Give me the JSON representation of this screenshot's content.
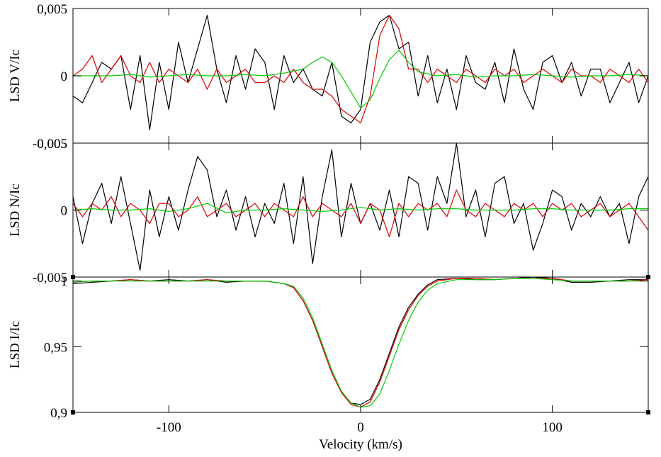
{
  "chart_data": {
    "type": "line",
    "xlabel": "Velocity (km/s)",
    "xlim": [
      -150,
      150
    ],
    "x_ticks": [
      -100,
      0,
      100
    ],
    "x_tick_labels": [
      "-100",
      "0",
      "100"
    ],
    "series_colors": {
      "black": "#000000",
      "red": "#e00000",
      "green": "#00cc00"
    },
    "panels": [
      {
        "id": "stokes-v",
        "ylabel": "LSD V/Ic",
        "ylim": [
          -0.005,
          0.005
        ],
        "y_ticks": [
          -0.005,
          0,
          0.005
        ],
        "y_tick_labels": [
          "-0,005",
          "0",
          "0,005"
        ],
        "series": [
          {
            "name": "black",
            "color": "#000000",
            "x": [
              -150,
              -145,
              -140,
              -135,
              -130,
              -125,
              -120,
              -115,
              -110,
              -105,
              -100,
              -95,
              -90,
              -85,
              -80,
              -75,
              -70,
              -65,
              -60,
              -55,
              -50,
              -45,
              -40,
              -35,
              -30,
              -25,
              -20,
              -15,
              -10,
              -5,
              0,
              5,
              10,
              15,
              20,
              25,
              30,
              35,
              40,
              45,
              50,
              55,
              60,
              65,
              70,
              75,
              80,
              85,
              90,
              95,
              100,
              105,
              110,
              115,
              120,
              125,
              130,
              135,
              140,
              145,
              150
            ],
            "y": [
              -0.0015,
              -0.002,
              -0.0005,
              0.001,
              0.0005,
              0.0015,
              -0.0025,
              0.0015,
              -0.004,
              0.001,
              -0.0025,
              0.0025,
              -0.0005,
              0.002,
              0.0045,
              0.0005,
              -0.002,
              0.0015,
              -0.001,
              0.002,
              0.001,
              -0.0025,
              0.0015,
              -0.0005,
              0.0005,
              -0.001,
              -0.0015,
              0.001,
              -0.003,
              -0.0035,
              -0.0025,
              0.0025,
              0.004,
              0.0045,
              0.002,
              0.0025,
              -0.0015,
              0.0015,
              -0.002,
              0.0005,
              -0.0025,
              0.0015,
              -0.0005,
              -0.001,
              0.001,
              -0.002,
              0.002,
              -0.001,
              -0.0025,
              0.001,
              0.0015,
              -0.0005,
              0.001,
              -0.0015,
              0.0005,
              0.0005,
              -0.002,
              -0.0005,
              0.001,
              -0.002,
              0
            ]
          },
          {
            "name": "red",
            "color": "#e00000",
            "x": [
              -150,
              -145,
              -140,
              -135,
              -130,
              -125,
              -120,
              -115,
              -110,
              -105,
              -100,
              -95,
              -90,
              -85,
              -80,
              -75,
              -70,
              -65,
              -60,
              -55,
              -50,
              -45,
              -40,
              -35,
              -30,
              -25,
              -20,
              -15,
              -10,
              -5,
              0,
              5,
              10,
              15,
              20,
              25,
              30,
              35,
              40,
              45,
              50,
              55,
              60,
              65,
              70,
              75,
              80,
              85,
              90,
              95,
              100,
              105,
              110,
              115,
              120,
              125,
              130,
              135,
              140,
              145,
              150
            ],
            "y": [
              0,
              0.0005,
              0.0015,
              -0.0005,
              0.0005,
              0.0015,
              0,
              -0.0005,
              0.001,
              -0.0005,
              0.0005,
              0,
              -0.0005,
              0.0005,
              -0.001,
              0.0005,
              -0.0005,
              0,
              0.0005,
              -0.0005,
              -0.0005,
              0,
              -0.0005,
              0.0005,
              -0.0005,
              -0.001,
              -0.001,
              -0.0015,
              -0.0025,
              -0.003,
              -0.0035,
              -0.0015,
              0.003,
              0.0045,
              0.0035,
              0.0005,
              0.0005,
              -0.0005,
              0.0005,
              0,
              -0.0005,
              0.0005,
              0,
              -0.0005,
              0.0005,
              0,
              0.0005,
              -0.0005,
              0,
              0.0005,
              0,
              -0.0005,
              0.0005,
              0,
              0,
              -0.0005,
              0.0005,
              0,
              -0.0005,
              0.0005,
              -0.0005
            ]
          },
          {
            "name": "green",
            "color": "#00cc00",
            "x": [
              -150,
              -140,
              -130,
              -120,
              -110,
              -100,
              -90,
              -80,
              -70,
              -60,
              -50,
              -40,
              -30,
              -25,
              -20,
              -15,
              -10,
              -5,
              0,
              5,
              10,
              15,
              20,
              25,
              30,
              40,
              50,
              60,
              70,
              80,
              90,
              100,
              110,
              120,
              130,
              140,
              150
            ],
            "y": [
              0,
              0,
              0,
              0.0001,
              -0.0001,
              0,
              0.0001,
              0,
              0,
              0.0001,
              0,
              0.0002,
              0.0005,
              0.001,
              0.0014,
              0.001,
              0,
              -0.0012,
              -0.0024,
              -0.0018,
              -0.0002,
              0.0012,
              0.0019,
              0.001,
              0.0003,
              0,
              0.0001,
              -0.0001,
              0,
              0,
              0.0001,
              0,
              -0.0001,
              0,
              0,
              0.0001,
              0
            ]
          }
        ]
      },
      {
        "id": "null-n",
        "ylabel": "LSD N/Ic",
        "ylim": [
          -0.005,
          0.005
        ],
        "y_ticks": [
          -0.005,
          0,
          0.005
        ],
        "y_tick_labels": [
          "-0,005",
          "0",
          "0,005"
        ],
        "series": [
          {
            "name": "black",
            "color": "#000000",
            "x": [
              -150,
              -145,
              -140,
              -135,
              -130,
              -125,
              -120,
              -115,
              -110,
              -105,
              -100,
              -95,
              -90,
              -85,
              -80,
              -75,
              -70,
              -65,
              -60,
              -55,
              -50,
              -45,
              -40,
              -35,
              -30,
              -25,
              -20,
              -15,
              -10,
              -5,
              0,
              5,
              10,
              15,
              20,
              25,
              30,
              35,
              40,
              45,
              50,
              55,
              60,
              65,
              70,
              75,
              80,
              85,
              90,
              95,
              100,
              105,
              110,
              115,
              120,
              125,
              130,
              135,
              140,
              145,
              150
            ],
            "y": [
              0.001,
              -0.0025,
              0.0005,
              0.002,
              -0.001,
              0.0025,
              -0.001,
              -0.0045,
              0.0015,
              -0.002,
              0.001,
              -0.0015,
              0.0015,
              0.004,
              0.003,
              -0.0005,
              0.0015,
              -0.0015,
              0.001,
              -0.002,
              0.0005,
              -0.001,
              0.002,
              -0.0025,
              0.0025,
              -0.004,
              0.001,
              0.0045,
              -0.002,
              0.002,
              -0.001,
              0.0005,
              -0.0015,
              0.0015,
              -0.002,
              0.0025,
              0.002,
              -0.0015,
              0.0025,
              0.0005,
              0.005,
              -0.0005,
              0.0015,
              -0.002,
              0.002,
              0.0025,
              -0.001,
              0.0005,
              -0.003,
              -0.001,
              0.0015,
              0.001,
              -0.0015,
              0.0005,
              -0.0005,
              0.001,
              -0.0005,
              0.0005,
              -0.0025,
              0.001,
              0.0025
            ]
          },
          {
            "name": "red",
            "color": "#e00000",
            "x": [
              -150,
              -145,
              -140,
              -135,
              -130,
              -125,
              -120,
              -115,
              -110,
              -105,
              -100,
              -95,
              -90,
              -85,
              -80,
              -75,
              -70,
              -65,
              -60,
              -55,
              -50,
              -45,
              -40,
              -35,
              -30,
              -25,
              -20,
              -15,
              -10,
              -5,
              0,
              5,
              10,
              15,
              20,
              25,
              30,
              35,
              40,
              45,
              50,
              55,
              60,
              65,
              70,
              75,
              80,
              85,
              90,
              95,
              100,
              105,
              110,
              115,
              120,
              125,
              130,
              135,
              140,
              145,
              150
            ],
            "y": [
              0.0005,
              -0.0005,
              0.0005,
              0,
              0.001,
              -0.0005,
              0.0005,
              0,
              -0.001,
              0.0005,
              0.0005,
              -0.0005,
              0,
              0.001,
              -0.0005,
              0,
              0.0005,
              -0.0005,
              0,
              0.0005,
              -0.0005,
              0.0005,
              0,
              -0.0005,
              0.001,
              -0.0005,
              0.0005,
              0,
              -0.0005,
              0.0005,
              -0.001,
              0.0005,
              0,
              -0.002,
              0.0005,
              -0.0005,
              0.0005,
              0,
              0.0005,
              -0.0005,
              0.0015,
              0,
              -0.0005,
              0.0005,
              0,
              -0.0005,
              0.0005,
              0,
              0.0005,
              -0.0005,
              0.0005,
              0,
              0.0005,
              -0.0005,
              0,
              0.0005,
              -0.0005,
              0,
              0.0005,
              -0.0005,
              -0.0015
            ]
          },
          {
            "name": "green",
            "color": "#00cc00",
            "x": [
              -150,
              -140,
              -130,
              -120,
              -110,
              -100,
              -90,
              -80,
              -70,
              -60,
              -50,
              -40,
              -30,
              -20,
              -10,
              0,
              10,
              20,
              30,
              40,
              50,
              60,
              70,
              80,
              90,
              100,
              110,
              120,
              130,
              140,
              150
            ],
            "y": [
              0,
              0.0001,
              0,
              0,
              0.0001,
              -0.0001,
              0.0001,
              0.0005,
              -0.0002,
              0,
              0,
              0.0001,
              0,
              -0.0001,
              0,
              0.0002,
              0,
              0.0001,
              0,
              0.0001,
              0.0001,
              0,
              0,
              0,
              0.0001,
              0.0001,
              0,
              0,
              0,
              0.0001,
              0.0001
            ]
          }
        ]
      },
      {
        "id": "stokes-i",
        "ylabel": "LSD I/Ic",
        "ylim": [
          0.9,
          1.003
        ],
        "y_ticks": [
          0.9,
          0.95,
          1
        ],
        "y_tick_labels": [
          "0,9",
          "0,95",
          "1"
        ],
        "series": [
          {
            "name": "black",
            "color": "#000000",
            "x": [
              -150,
              -140,
              -130,
              -120,
              -110,
              -100,
              -90,
              -80,
              -70,
              -60,
              -50,
              -40,
              -35,
              -30,
              -25,
              -20,
              -15,
              -10,
              -5,
              0,
              5,
              10,
              15,
              20,
              25,
              30,
              35,
              40,
              50,
              60,
              70,
              80,
              90,
              100,
              110,
              120,
              130,
              140,
              150
            ],
            "y": [
              0.998,
              0.999,
              1,
              1.001,
              1.0,
              1.001,
              1.0,
              1.001,
              0.999,
              1.0,
              1.0,
              0.998,
              0.995,
              0.985,
              0.97,
              0.95,
              0.93,
              0.916,
              0.907,
              0.906,
              0.91,
              0.925,
              0.945,
              0.965,
              0.98,
              0.99,
              0.997,
              1.001,
              1.002,
              1.001,
              1.001,
              1.002,
              1.003,
              1.002,
              0.999,
              0.999,
              1.0,
              1.001,
              1.001
            ]
          },
          {
            "name": "red",
            "color": "#e00000",
            "x": [
              -150,
              -140,
              -130,
              -120,
              -110,
              -100,
              -90,
              -80,
              -70,
              -60,
              -50,
              -40,
              -35,
              -30,
              -25,
              -20,
              -15,
              -10,
              -5,
              0,
              5,
              10,
              15,
              20,
              25,
              30,
              35,
              40,
              50,
              60,
              70,
              80,
              90,
              100,
              110,
              120,
              130,
              140,
              150
            ],
            "y": [
              0.999,
              1.0,
              1.0,
              1.001,
              1.0,
              1.0,
              1.0,
              1.001,
              1.0,
              1.0,
              1.0,
              0.998,
              0.995,
              0.985,
              0.97,
              0.95,
              0.93,
              0.915,
              0.906,
              0.904,
              0.908,
              0.923,
              0.943,
              0.963,
              0.978,
              0.989,
              0.996,
              1.0,
              1.002,
              1.002,
              1.001,
              1.002,
              1.002,
              1.002,
              1.0,
              1.0,
              1.0,
              1.0,
              1.001
            ]
          },
          {
            "name": "green",
            "color": "#00cc00",
            "x": [
              -150,
              -140,
              -130,
              -120,
              -110,
              -100,
              -90,
              -80,
              -70,
              -60,
              -50,
              -40,
              -35,
              -30,
              -25,
              -20,
              -15,
              -10,
              -5,
              0,
              5,
              10,
              15,
              20,
              25,
              30,
              35,
              40,
              50,
              60,
              70,
              80,
              90,
              100,
              110,
              120,
              130,
              140,
              150
            ],
            "y": [
              0.999,
              1.0,
              1.0,
              1.0,
              1.0,
              1.0,
              1.0,
              1.0,
              1.0,
              1.0,
              1.0,
              0.998,
              0.996,
              0.987,
              0.972,
              0.952,
              0.932,
              0.916,
              0.907,
              0.904,
              0.905,
              0.914,
              0.932,
              0.952,
              0.97,
              0.984,
              0.993,
              0.998,
              1.001,
              1.001,
              1.001,
              1.002,
              1.002,
              1.001,
              1.0,
              1.0,
              1.0,
              1.0,
              1.0
            ]
          }
        ]
      }
    ]
  }
}
